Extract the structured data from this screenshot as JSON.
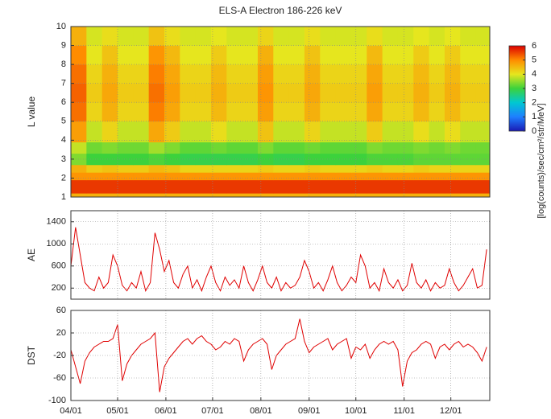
{
  "chart_data": [
    {
      "type": "heatmap",
      "title": "ELS-A Electron 186-226 keV",
      "y_label": "L value",
      "x_bins": [
        0,
        10,
        20,
        30,
        40,
        50,
        60,
        70,
        80,
        90,
        100,
        110,
        120,
        130,
        140,
        150,
        160,
        170,
        180,
        190,
        200,
        210,
        220,
        230,
        240,
        250,
        260,
        270
      ],
      "y_bins": [
        1,
        1.2,
        1.9,
        2.3,
        2.7,
        3.3,
        3.9,
        5,
        6,
        7,
        8,
        9,
        10
      ],
      "z": [
        [
          4.6,
          4.6,
          4.6,
          4.6,
          4.6,
          4.6,
          4.6,
          4.6,
          4.6,
          4.6,
          4.6,
          4.6,
          4.6,
          4.6,
          4.6,
          4.6,
          4.6,
          4.6,
          4.6,
          4.6,
          4.6,
          4.6,
          4.6,
          4.6,
          4.6,
          4.6,
          4.6
        ],
        [
          5.6,
          5.6,
          5.6,
          5.6,
          5.6,
          5.6,
          5.6,
          5.6,
          5.6,
          5.6,
          5.6,
          5.6,
          5.6,
          5.6,
          5.6,
          5.6,
          5.6,
          5.6,
          5.6,
          5.6,
          5.6,
          5.6,
          5.6,
          5.6,
          5.6,
          5.6,
          5.6
        ],
        [
          4.9,
          4.9,
          4.9,
          4.9,
          4.9,
          4.9,
          4.9,
          4.9,
          4.9,
          4.9,
          4.9,
          4.9,
          4.9,
          4.9,
          4.9,
          4.9,
          4.9,
          4.9,
          4.9,
          4.9,
          4.9,
          4.9,
          4.9,
          4.9,
          4.9,
          4.9,
          4.9
        ],
        [
          4.6,
          4.3,
          4.4,
          4.3,
          4.3,
          4.5,
          4.4,
          4.2,
          4.2,
          4.2,
          4.2,
          4.2,
          4.3,
          4.2,
          4.2,
          4.3,
          4.2,
          4.2,
          4.2,
          4.3,
          4.2,
          4.2,
          4.3,
          4.2,
          4.2,
          4.2,
          4.2
        ],
        [
          3.4,
          3.0,
          3.0,
          3.0,
          3.0,
          3.1,
          3.0,
          2.9,
          2.9,
          2.9,
          2.9,
          2.9,
          3.0,
          2.9,
          2.9,
          3.0,
          3.0,
          3.0,
          3.0,
          3.1,
          3.1,
          3.1,
          3.2,
          3.2,
          3.2,
          3.2,
          3.2
        ],
        [
          3.8,
          3.3,
          3.4,
          3.3,
          3.3,
          3.6,
          3.4,
          3.2,
          3.2,
          3.3,
          3.2,
          3.2,
          3.4,
          3.2,
          3.2,
          3.3,
          3.2,
          3.2,
          3.2,
          3.4,
          3.3,
          3.3,
          3.4,
          3.3,
          3.4,
          3.3,
          3.3
        ],
        [
          4.8,
          3.8,
          4.2,
          3.8,
          3.8,
          4.7,
          4.3,
          3.8,
          3.8,
          4.1,
          3.8,
          3.8,
          4.4,
          3.8,
          3.8,
          4.2,
          3.8,
          3.8,
          3.8,
          4.3,
          3.8,
          3.8,
          4.1,
          3.8,
          4.1,
          3.8,
          3.8
        ],
        [
          5.2,
          4.2,
          4.6,
          4.2,
          4.2,
          5.1,
          4.7,
          4.2,
          4.2,
          4.5,
          4.2,
          4.2,
          4.8,
          4.2,
          4.2,
          4.6,
          4.2,
          4.2,
          4.2,
          4.7,
          4.2,
          4.2,
          4.5,
          4.2,
          4.5,
          4.2,
          4.2
        ],
        [
          5.3,
          4.3,
          4.7,
          4.3,
          4.3,
          5.2,
          4.8,
          4.3,
          4.3,
          4.6,
          4.3,
          4.3,
          4.9,
          4.3,
          4.3,
          4.7,
          4.3,
          4.3,
          4.3,
          4.8,
          4.3,
          4.3,
          4.6,
          4.3,
          4.6,
          4.3,
          4.3
        ],
        [
          5.2,
          4.2,
          4.6,
          4.2,
          4.2,
          5.1,
          4.7,
          4.2,
          4.2,
          4.5,
          4.2,
          4.2,
          4.8,
          4.2,
          4.2,
          4.6,
          4.2,
          4.2,
          4.2,
          4.7,
          4.2,
          4.2,
          4.5,
          4.2,
          4.5,
          4.2,
          4.2
        ],
        [
          5.0,
          4.0,
          4.4,
          4.0,
          4.0,
          4.9,
          4.5,
          4.0,
          4.0,
          4.3,
          4.0,
          4.0,
          4.6,
          4.0,
          4.0,
          4.4,
          4.0,
          4.0,
          4.0,
          4.5,
          4.0,
          4.0,
          4.3,
          4.0,
          4.3,
          4.0,
          4.0
        ],
        [
          4.6,
          3.9,
          4.1,
          3.9,
          3.9,
          4.4,
          4.1,
          3.9,
          3.9,
          4.0,
          3.9,
          3.9,
          4.2,
          3.9,
          3.9,
          4.1,
          3.9,
          3.9,
          3.9,
          4.1,
          3.9,
          3.9,
          4.0,
          3.9,
          4.0,
          3.9,
          3.9
        ]
      ],
      "xlim": [
        0,
        269
      ],
      "ylim": [
        1,
        10
      ],
      "yticks": [
        1,
        2,
        3,
        4,
        5,
        6,
        7,
        8,
        9,
        10
      ],
      "zlim": [
        0,
        6
      ],
      "zticks": [
        0,
        1,
        2,
        3,
        4,
        5,
        6
      ],
      "colormap": [
        "#1a1ab4",
        "#1e7fff",
        "#00c8d2",
        "#3cd23c",
        "#e6e61e",
        "#ff8c00",
        "#dc0000"
      ],
      "colorbar_label": "[log(counts)/sec/cm²/str/MeV]",
      "grid": true
    },
    {
      "type": "line",
      "y_label": "AE",
      "color": "#e00000",
      "x": [
        0,
        3,
        6,
        9,
        12,
        15,
        18,
        21,
        24,
        27,
        30,
        33,
        36,
        39,
        42,
        45,
        48,
        51,
        54,
        57,
        60,
        63,
        66,
        69,
        72,
        75,
        78,
        81,
        84,
        87,
        90,
        93,
        96,
        99,
        102,
        105,
        108,
        111,
        114,
        117,
        120,
        123,
        126,
        129,
        132,
        135,
        138,
        141,
        144,
        147,
        150,
        153,
        156,
        159,
        162,
        165,
        168,
        171,
        174,
        177,
        180,
        183,
        186,
        189,
        192,
        195,
        198,
        201,
        204,
        207,
        210,
        213,
        216,
        219,
        222,
        225,
        228,
        231,
        234,
        237,
        240,
        243,
        246,
        249,
        252,
        255,
        258,
        261,
        264,
        267
      ],
      "values": [
        600,
        1300,
        800,
        300,
        200,
        150,
        400,
        200,
        300,
        800,
        600,
        250,
        150,
        300,
        200,
        500,
        150,
        300,
        1200,
        900,
        500,
        700,
        300,
        200,
        450,
        600,
        200,
        350,
        150,
        400,
        600,
        300,
        150,
        400,
        250,
        350,
        200,
        600,
        300,
        150,
        350,
        600,
        300,
        200,
        400,
        150,
        300,
        200,
        250,
        400,
        700,
        500,
        200,
        300,
        150,
        350,
        600,
        300,
        150,
        250,
        400,
        300,
        800,
        600,
        200,
        300,
        150,
        550,
        300,
        200,
        350,
        150,
        250,
        650,
        300,
        200,
        350,
        150,
        300,
        200,
        250,
        550,
        300,
        150,
        250,
        400,
        550,
        200,
        250,
        900
      ],
      "xlim": [
        0,
        269
      ],
      "ylim": [
        0,
        1600
      ],
      "yticks": [
        200,
        600,
        1000,
        1400
      ],
      "grid": true
    },
    {
      "type": "line",
      "y_label": "DST",
      "color": "#e00000",
      "x": [
        0,
        3,
        6,
        9,
        12,
        15,
        18,
        21,
        24,
        27,
        30,
        33,
        36,
        39,
        42,
        45,
        48,
        51,
        54,
        57,
        60,
        63,
        66,
        69,
        72,
        75,
        78,
        81,
        84,
        87,
        90,
        93,
        96,
        99,
        102,
        105,
        108,
        111,
        114,
        117,
        120,
        123,
        126,
        129,
        132,
        135,
        138,
        141,
        144,
        147,
        150,
        153,
        156,
        159,
        162,
        165,
        168,
        171,
        174,
        177,
        180,
        183,
        186,
        189,
        192,
        195,
        198,
        201,
        204,
        207,
        210,
        213,
        216,
        219,
        222,
        225,
        228,
        231,
        234,
        237,
        240,
        243,
        246,
        249,
        252,
        255,
        258,
        261,
        264,
        267
      ],
      "values": [
        -10,
        -40,
        -70,
        -30,
        -15,
        -5,
        0,
        5,
        5,
        10,
        35,
        -65,
        -35,
        -20,
        -10,
        0,
        5,
        10,
        20,
        -85,
        -40,
        -25,
        -15,
        -5,
        5,
        10,
        0,
        10,
        15,
        5,
        0,
        -10,
        -5,
        5,
        0,
        10,
        5,
        -30,
        -10,
        0,
        5,
        10,
        0,
        -45,
        -20,
        -10,
        0,
        5,
        10,
        45,
        5,
        -15,
        -5,
        0,
        5,
        10,
        -10,
        0,
        5,
        10,
        -25,
        -5,
        -10,
        0,
        -25,
        -10,
        0,
        5,
        0,
        5,
        -10,
        -75,
        -30,
        -15,
        -10,
        0,
        5,
        0,
        -25,
        -5,
        0,
        -10,
        0,
        5,
        -5,
        0,
        -5,
        -15,
        -30,
        -5
      ],
      "xlim": [
        0,
        269
      ],
      "ylim": [
        -100,
        60
      ],
      "yticks": [
        60,
        20,
        -20,
        -60,
        -100
      ],
      "xticks": [
        {
          "value": 0,
          "label": "04/01"
        },
        {
          "value": 30,
          "label": "05/01"
        },
        {
          "value": 61,
          "label": "06/01"
        },
        {
          "value": 91,
          "label": "07/01"
        },
        {
          "value": 122,
          "label": "08/01"
        },
        {
          "value": 153,
          "label": "09/01"
        },
        {
          "value": 183,
          "label": "10/01"
        },
        {
          "value": 214,
          "label": "11/01"
        },
        {
          "value": 244,
          "label": "12/01"
        }
      ],
      "grid": true
    }
  ]
}
